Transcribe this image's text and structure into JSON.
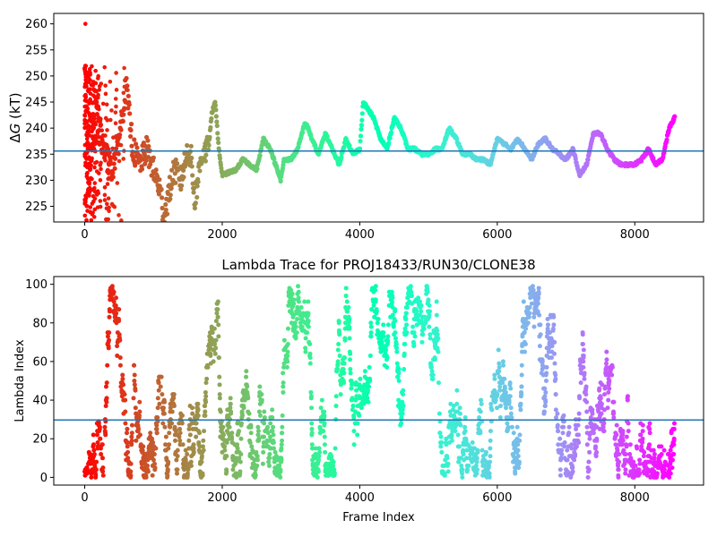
{
  "chart_data": [
    {
      "type": "scatter",
      "title": "",
      "xlabel": "",
      "ylabel_prefix": "Δ",
      "ylabel_var": "G",
      "ylabel_suffix": " (kT)",
      "xlim": [
        -450,
        9000
      ],
      "ylim": [
        222,
        262
      ],
      "xticks": [
        0,
        2000,
        4000,
        6000,
        8000
      ],
      "yticks": [
        225,
        230,
        235,
        240,
        245,
        250,
        255,
        260
      ],
      "hline": 235.6,
      "hline_color": "#1f77b4",
      "colormap": "rainbow (red at start, violet at end)",
      "x_max_frame": 8580,
      "trace_anchors": {
        "x": [
          0,
          30,
          60,
          100,
          150,
          200,
          300,
          400,
          500,
          600,
          700,
          800,
          900,
          1000,
          1100,
          1150,
          1200,
          1300,
          1400,
          1500,
          1550,
          1600,
          1700,
          1800,
          1850,
          1900,
          1950,
          2000,
          2200,
          2300,
          2400,
          2500,
          2600,
          2700,
          2800,
          2850,
          2900,
          3000,
          3100,
          3200,
          3250,
          3300,
          3400,
          3500,
          3600,
          3700,
          3800,
          3900,
          4000,
          4050,
          4100,
          4200,
          4300,
          4400,
          4500,
          4600,
          4700,
          4800,
          4900,
          5000,
          5100,
          5200,
          5300,
          5400,
          5500,
          5600,
          5700,
          5800,
          5900,
          6000,
          6100,
          6200,
          6300,
          6400,
          6500,
          6600,
          6700,
          6800,
          6900,
          7000,
          7100,
          7200,
          7300,
          7400,
          7500,
          7600,
          7700,
          7800,
          7900,
          8000,
          8100,
          8200,
          8300,
          8400,
          8500,
          8580
        ],
        "y": [
          250,
          240,
          230,
          236,
          245,
          240,
          235,
          232,
          238,
          248,
          236,
          233,
          236,
          232,
          228,
          223,
          226,
          232,
          230,
          236,
          234,
          226,
          235,
          236,
          243,
          245,
          236,
          231,
          232,
          234,
          233,
          232,
          238,
          236,
          232,
          230,
          234,
          234,
          236,
          241,
          240,
          238,
          235,
          239,
          236,
          233,
          238,
          235,
          236,
          245,
          244,
          242,
          238,
          236,
          242,
          240,
          236,
          236,
          235,
          235,
          236,
          236,
          240,
          238,
          235,
          235,
          234,
          234,
          233,
          238,
          237,
          236,
          238,
          236,
          234,
          237,
          238,
          236,
          235,
          234,
          236,
          231,
          233,
          239,
          239,
          236,
          234,
          233,
          233,
          233,
          234,
          236,
          233,
          234,
          240,
          242
        ]
      },
      "scatter_burst": {
        "x_range": [
          0,
          700
        ],
        "y_range": [
          222,
          252
        ]
      }
    },
    {
      "type": "scatter",
      "title": "Lambda Trace for PROJ18433/RUN30/CLONE38",
      "xlabel": "Frame Index",
      "ylabel": "Lambda Index",
      "xlim": [
        -450,
        9000
      ],
      "ylim": [
        -4,
        104
      ],
      "xticks": [
        0,
        2000,
        4000,
        6000,
        8000
      ],
      "yticks": [
        0,
        20,
        40,
        60,
        80,
        100
      ],
      "hline": 29.7,
      "hline_color": "#1f77b4",
      "colormap": "rainbow (red at start, violet at end)",
      "x_max_frame": 8580,
      "lambda_range": [
        0,
        99
      ]
    }
  ]
}
